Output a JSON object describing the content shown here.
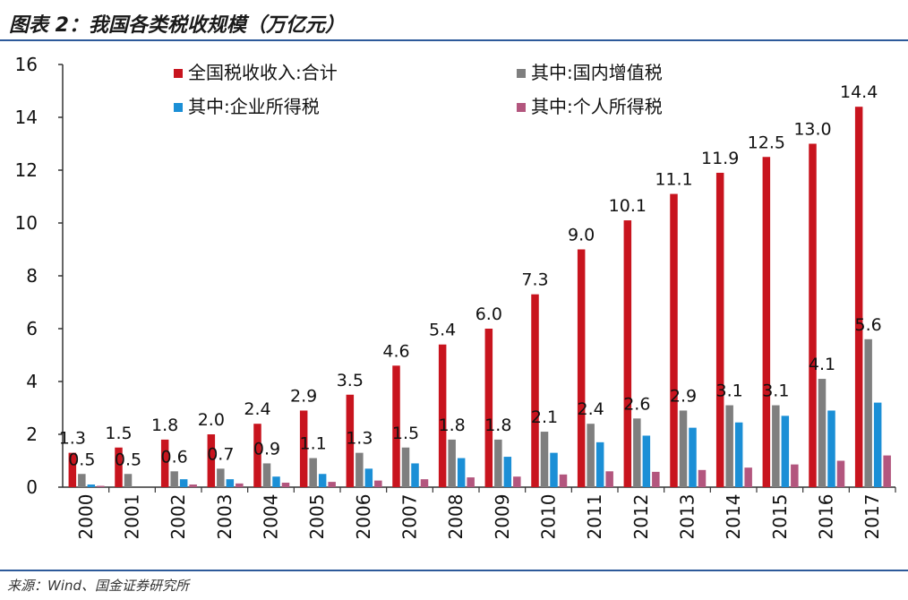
{
  "figure": {
    "title": "图表 2：我国各类税收规模（万亿元）",
    "source": "来源：Wind、国金证券研究所"
  },
  "chart_data": {
    "type": "bar",
    "title": "我国各类税收规模（万亿元）",
    "xlabel": "",
    "ylabel": "",
    "ylim": [
      0,
      16
    ],
    "yticks": [
      "0",
      "2",
      "4",
      "6",
      "8",
      "10",
      "12",
      "14",
      "16"
    ],
    "grid": false,
    "legend_position": "top",
    "categories": [
      "2000",
      "2001",
      "2002",
      "2003",
      "2004",
      "2005",
      "2006",
      "2007",
      "2008",
      "2009",
      "2010",
      "2011",
      "2012",
      "2013",
      "2014",
      "2015",
      "2016",
      "2017"
    ],
    "series": [
      {
        "name": "全国税收收入:合计",
        "color": "#c8141e",
        "values": [
          1.3,
          1.5,
          1.8,
          2.0,
          2.4,
          2.9,
          3.5,
          4.6,
          5.4,
          6.0,
          7.3,
          9.0,
          10.1,
          11.1,
          11.9,
          12.5,
          13.0,
          14.4
        ],
        "labels": [
          "1.3",
          "1.5",
          "1.8",
          "2.0",
          "2.4",
          "2.9",
          "3.5",
          "4.6",
          "5.4",
          "6.0",
          "7.3",
          "9.0",
          "10.1",
          "11.1",
          "11.9",
          "12.5",
          "13.0",
          "14.4"
        ]
      },
      {
        "name": "其中:国内增值税",
        "color": "#7f7f7f",
        "values": [
          0.5,
          0.5,
          0.6,
          0.7,
          0.9,
          1.1,
          1.3,
          1.5,
          1.8,
          1.8,
          2.1,
          2.4,
          2.6,
          2.9,
          3.1,
          3.1,
          4.1,
          5.6
        ],
        "labels": [
          "0.5",
          "0.5",
          "0.6",
          "0.7",
          "0.9",
          "1.1",
          "1.3",
          "1.5",
          "1.8",
          "1.8",
          "2.1",
          "2.4",
          "2.6",
          "2.9",
          "3.1",
          "3.1",
          "4.1",
          "5.6"
        ]
      },
      {
        "name": "其中:企业所得税",
        "color": "#1b8fd6",
        "values": [
          0.1,
          0.0,
          0.3,
          0.3,
          0.4,
          0.5,
          0.7,
          0.9,
          1.1,
          1.15,
          1.3,
          1.7,
          1.95,
          2.25,
          2.45,
          2.7,
          2.9,
          3.2
        ],
        "labels": []
      },
      {
        "name": "其中:个人所得税",
        "color": "#b3567e",
        "values": [
          0.05,
          0.0,
          0.1,
          0.14,
          0.17,
          0.2,
          0.25,
          0.3,
          0.37,
          0.4,
          0.48,
          0.6,
          0.58,
          0.65,
          0.74,
          0.86,
          1.0,
          1.2
        ],
        "labels": []
      }
    ]
  }
}
